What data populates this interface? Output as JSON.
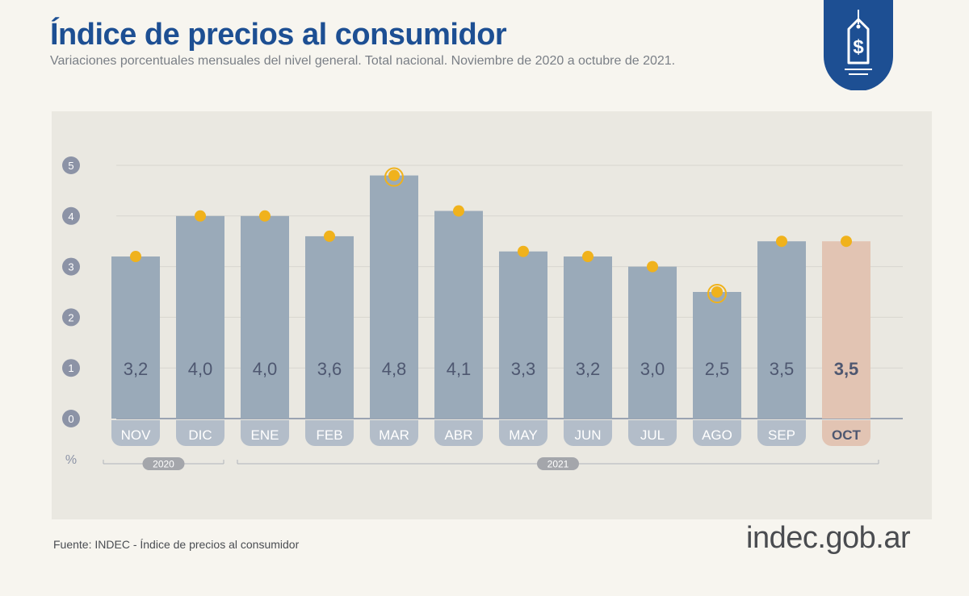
{
  "header": {
    "title": "Índice de precios al consumidor",
    "subtitle": "Variaciones porcentuales mensuales del nivel general. Total nacional. Noviembre de 2020 a octubre de 2021."
  },
  "footer": {
    "source": "Fuente: INDEC - Índice de precios al consumidor",
    "brand": "indec.gob.ar"
  },
  "badge": {
    "icon": "price-tag-dollar-icon",
    "symbol": "$",
    "color": "#1d4f93"
  },
  "chart_data": {
    "type": "bar",
    "categories": [
      "NOV",
      "DIC",
      "ENE",
      "FEB",
      "MAR",
      "ABR",
      "MAY",
      "JUN",
      "JUL",
      "AGO",
      "SEP",
      "OCT"
    ],
    "values": [
      3.2,
      4.0,
      4.0,
      3.6,
      4.8,
      4.1,
      3.3,
      3.2,
      3.0,
      2.5,
      3.5,
      3.5
    ],
    "value_labels": [
      "3,2",
      "4,0",
      "4,0",
      "3,6",
      "4,8",
      "4,1",
      "3,3",
      "3,2",
      "3,0",
      "2,5",
      "3,5",
      "3,5"
    ],
    "highlight_index": 11,
    "ringed_markers": [
      4,
      9
    ],
    "y_ticks": [
      0,
      1,
      2,
      3,
      4,
      5
    ],
    "ylim": [
      0,
      5
    ],
    "ylabel": "%",
    "year_groups": [
      {
        "label": "2020",
        "from": 0,
        "to": 1
      },
      {
        "label": "2021",
        "from": 2,
        "to": 11
      }
    ],
    "grid": true,
    "colors": {
      "bar": "#9aaab9",
      "highlight_bar": "#e2c4b3",
      "marker": "#f0b21c",
      "label": "#4e5770"
    }
  }
}
